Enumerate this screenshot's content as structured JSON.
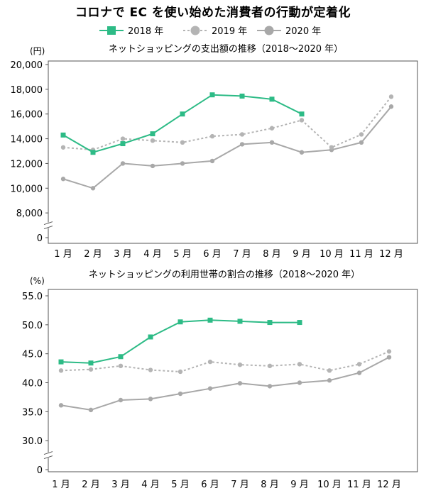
{
  "title": "コロナで EC を使い始めた消費者の行動が定着化",
  "legend": [
    {
      "name": "2018 年",
      "color": "#2dbb86",
      "style": "solid",
      "marker": "square"
    },
    {
      "name": "2019 年",
      "color": "#b4b4b4",
      "style": "dotted",
      "marker": "circle"
    },
    {
      "name": "2020 年",
      "color": "#a8a8a8",
      "style": "solid",
      "marker": "circle"
    }
  ],
  "chart_data": [
    {
      "type": "line",
      "title": "ネットショッピングの支出額の推移（2018〜2020 年）",
      "ylabel": "(円)",
      "categories": [
        "1 月",
        "2 月",
        "3 月",
        "4 月",
        "5 月",
        "6 月",
        "7 月",
        "8 月",
        "9 月",
        "10 月",
        "11 月",
        "12 月"
      ],
      "yticks": [
        "20,000",
        "18,000",
        "16,000",
        "14,000",
        "12,000",
        "10,000",
        "8,000",
        "0"
      ],
      "ytick_values": [
        20000,
        18000,
        16000,
        14000,
        12000,
        10000,
        8000,
        6000
      ],
      "ylim": [
        6000,
        20000
      ],
      "axis_break": true,
      "grid": false,
      "series": [
        {
          "name": "2018 年",
          "values": [
            14300,
            12900,
            13600,
            14400,
            16000,
            17550,
            17450,
            17200,
            16000,
            null,
            null,
            null
          ]
        },
        {
          "name": "2019 年",
          "values": [
            13300,
            13100,
            14000,
            13850,
            13700,
            14200,
            14350,
            14850,
            15500,
            13300,
            14350,
            17400
          ]
        },
        {
          "name": "2020 年",
          "values": [
            10750,
            10000,
            12000,
            11800,
            12000,
            12200,
            13550,
            13700,
            12900,
            13100,
            13700,
            16600
          ]
        }
      ]
    },
    {
      "type": "line",
      "title": "ネットショッピングの利用世帯の割合の推移（2018〜2020 年）",
      "ylabel": "(%)",
      "categories": [
        "1 月",
        "2 月",
        "3 月",
        "4 月",
        "5 月",
        "6 月",
        "7 月",
        "8 月",
        "9 月",
        "10 月",
        "11 月",
        "12 月"
      ],
      "yticks": [
        "55.0",
        "50.0",
        "45.0",
        "40.0",
        "35.0",
        "30.0",
        "0"
      ],
      "ytick_values": [
        55,
        50,
        45,
        40,
        35,
        30,
        25
      ],
      "ylim": [
        25,
        55
      ],
      "axis_break": true,
      "grid": false,
      "series": [
        {
          "name": "2018 年",
          "values": [
            43.6,
            43.4,
            44.5,
            47.9,
            50.5,
            50.8,
            50.6,
            50.4,
            50.4,
            null,
            null,
            null
          ]
        },
        {
          "name": "2019 年",
          "values": [
            42.1,
            42.3,
            42.9,
            42.2,
            41.9,
            43.6,
            43.1,
            42.9,
            43.2,
            42.1,
            43.2,
            45.4
          ]
        },
        {
          "name": "2020 年",
          "values": [
            36.1,
            35.3,
            37.0,
            37.2,
            38.1,
            39.0,
            39.9,
            39.4,
            40.0,
            40.4,
            41.7,
            44.4
          ]
        }
      ]
    }
  ]
}
